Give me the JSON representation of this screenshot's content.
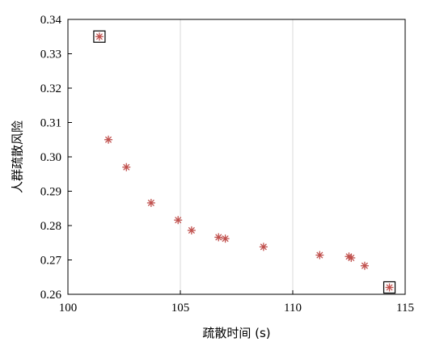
{
  "chart_data": {
    "type": "scatter",
    "title": "",
    "xlabel": "疏散时间 (s)",
    "ylabel": "人群疏散风险",
    "xlim": [
      100,
      115
    ],
    "ylim": [
      0.26,
      0.34
    ],
    "xticks": [
      100,
      105,
      110,
      115
    ],
    "xtick_labels": [
      "100",
      "105",
      "110",
      "115"
    ],
    "yticks": [
      0.26,
      0.27,
      0.28,
      0.29,
      0.3,
      0.31,
      0.32,
      0.33,
      0.34
    ],
    "ytick_labels": [
      "0.26",
      "0.27",
      "0.28",
      "0.29",
      "0.30",
      "0.31",
      "0.32",
      "0.33",
      "0.34"
    ],
    "grid": true,
    "legend": "none",
    "marker": "asterisk",
    "marker_color": "#c0504d",
    "highlight_color": "#000000",
    "series": [
      {
        "name": "",
        "points": [
          {
            "x": 101.4,
            "y": 0.335,
            "highlighted": true
          },
          {
            "x": 101.8,
            "y": 0.305,
            "highlighted": false
          },
          {
            "x": 102.6,
            "y": 0.297,
            "highlighted": false
          },
          {
            "x": 103.7,
            "y": 0.2866,
            "highlighted": false
          },
          {
            "x": 104.9,
            "y": 0.2816,
            "highlighted": false
          },
          {
            "x": 105.5,
            "y": 0.2786,
            "highlighted": false
          },
          {
            "x": 106.7,
            "y": 0.2766,
            "highlighted": false
          },
          {
            "x": 107.0,
            "y": 0.2762,
            "highlighted": false
          },
          {
            "x": 108.7,
            "y": 0.2738,
            "highlighted": false
          },
          {
            "x": 111.2,
            "y": 0.2714,
            "highlighted": false
          },
          {
            "x": 112.5,
            "y": 0.271,
            "highlighted": false
          },
          {
            "x": 112.6,
            "y": 0.2706,
            "highlighted": false
          },
          {
            "x": 113.2,
            "y": 0.2683,
            "highlighted": false
          },
          {
            "x": 114.3,
            "y": 0.262,
            "highlighted": true
          }
        ]
      }
    ]
  }
}
